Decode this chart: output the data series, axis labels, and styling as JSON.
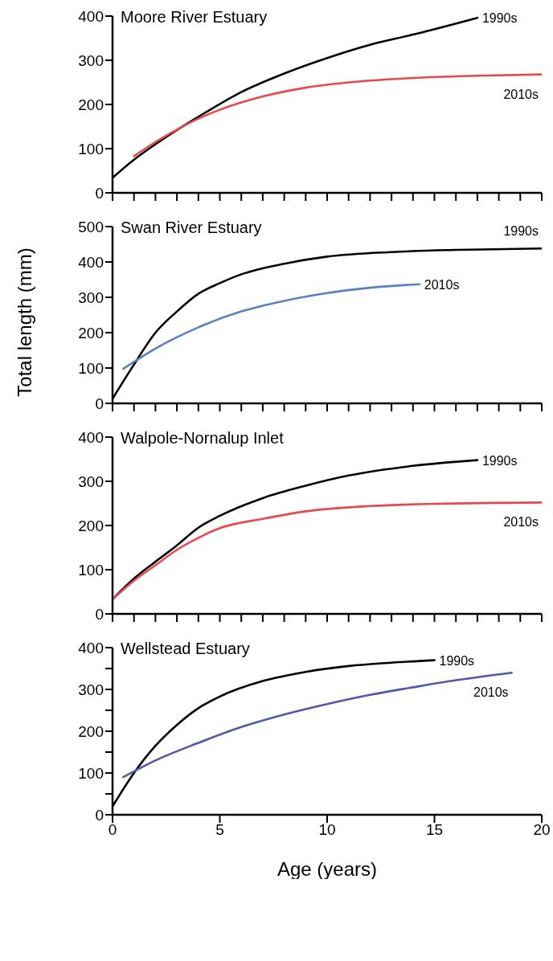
{
  "chart_data": [
    {
      "type": "line",
      "title": "Moore River Estuary",
      "xlim": [
        0,
        20
      ],
      "xticks": [
        {
          "value": 0,
          "label": null
        },
        {
          "value": 1,
          "label": null
        },
        {
          "value": 2,
          "label": null
        },
        {
          "value": 3,
          "label": null
        },
        {
          "value": 4,
          "label": null
        },
        {
          "value": 5,
          "label": null
        },
        {
          "value": 6,
          "label": null
        },
        {
          "value": 7,
          "label": null
        },
        {
          "value": 8,
          "label": null
        },
        {
          "value": 9,
          "label": null
        },
        {
          "value": 10,
          "label": null
        },
        {
          "value": 11,
          "label": null
        },
        {
          "value": 12,
          "label": null
        },
        {
          "value": 13,
          "label": null
        },
        {
          "value": 14,
          "label": null
        },
        {
          "value": 15,
          "label": null
        },
        {
          "value": 16,
          "label": null
        },
        {
          "value": 17,
          "label": null
        },
        {
          "value": 18,
          "label": null
        },
        {
          "value": 19,
          "label": null
        },
        {
          "value": 20,
          "label": null
        }
      ],
      "ylim": [
        0,
        400
      ],
      "yticks": [
        0,
        100,
        200,
        300,
        400
      ],
      "tick_labels": "y",
      "series": [
        {
          "name": "1990s",
          "color": "#000000",
          "x": [
            0,
            1,
            2,
            3,
            4,
            6,
            8,
            10,
            12,
            14,
            17
          ],
          "values": [
            34,
            75,
            110,
            142,
            172,
            228,
            270,
            305,
            335,
            358,
            396
          ]
        },
        {
          "name": "2010s",
          "color": "#e8474c",
          "x": [
            1,
            2,
            3,
            4,
            5,
            7,
            9,
            11,
            14,
            17,
            20
          ],
          "values": [
            83,
            115,
            143,
            168,
            188,
            218,
            238,
            250,
            260,
            265,
            268
          ]
        }
      ]
    },
    {
      "type": "line",
      "title": "Swan River Estuary",
      "ylabel": "Total length (mm)",
      "xlim": [
        0,
        20
      ],
      "xticks": [
        {
          "value": 0,
          "label": null
        },
        {
          "value": 1,
          "label": null
        },
        {
          "value": 2,
          "label": null
        },
        {
          "value": 3,
          "label": null
        },
        {
          "value": 4,
          "label": null
        },
        {
          "value": 5,
          "label": null
        },
        {
          "value": 6,
          "label": null
        },
        {
          "value": 7,
          "label": null
        },
        {
          "value": 8,
          "label": null
        },
        {
          "value": 9,
          "label": null
        },
        {
          "value": 10,
          "label": null
        },
        {
          "value": 11,
          "label": null
        },
        {
          "value": 12,
          "label": null
        },
        {
          "value": 13,
          "label": null
        },
        {
          "value": 14,
          "label": null
        },
        {
          "value": 15,
          "label": null
        },
        {
          "value": 16,
          "label": null
        },
        {
          "value": 17,
          "label": null
        },
        {
          "value": 18,
          "label": null
        },
        {
          "value": 19,
          "label": null
        },
        {
          "value": 20,
          "label": null
        }
      ],
      "ylim": [
        0,
        500
      ],
      "yticks": [
        0,
        100,
        200,
        300,
        400,
        500
      ],
      "tick_labels": "y",
      "series": [
        {
          "name": "1990s",
          "color": "#000000",
          "x": [
            0,
            1,
            2,
            3,
            4,
            5,
            6,
            8,
            10,
            13,
            16,
            20
          ],
          "values": [
            13,
            110,
            200,
            260,
            310,
            340,
            365,
            395,
            415,
            428,
            434,
            438
          ]
        },
        {
          "name": "2010s",
          "color": "#5b7fc4",
          "x": [
            0.5,
            2,
            4,
            6,
            8,
            10,
            12,
            14.3
          ],
          "values": [
            98,
            155,
            215,
            260,
            290,
            312,
            327,
            337
          ]
        }
      ]
    },
    {
      "type": "line",
      "title": "Walpole-Nornalup Inlet",
      "xlim": [
        0,
        20
      ],
      "xticks": [
        {
          "value": 0,
          "label": null
        },
        {
          "value": 1,
          "label": null
        },
        {
          "value": 2,
          "label": null
        },
        {
          "value": 3,
          "label": null
        },
        {
          "value": 4,
          "label": null
        },
        {
          "value": 5,
          "label": null
        },
        {
          "value": 6,
          "label": null
        },
        {
          "value": 7,
          "label": null
        },
        {
          "value": 8,
          "label": null
        },
        {
          "value": 9,
          "label": null
        },
        {
          "value": 10,
          "label": null
        },
        {
          "value": 11,
          "label": null
        },
        {
          "value": 12,
          "label": null
        },
        {
          "value": 13,
          "label": null
        },
        {
          "value": 14,
          "label": null
        },
        {
          "value": 15,
          "label": null
        },
        {
          "value": 16,
          "label": null
        },
        {
          "value": 17,
          "label": null
        },
        {
          "value": 18,
          "label": null
        },
        {
          "value": 19,
          "label": null
        },
        {
          "value": 20,
          "label": null
        }
      ],
      "ylim": [
        0,
        400
      ],
      "yticks": [
        0,
        100,
        200,
        300,
        400
      ],
      "tick_labels": "y",
      "series": [
        {
          "name": "1990s",
          "color": "#000000",
          "x": [
            0,
            1,
            2,
            3,
            4,
            5,
            7,
            9,
            11,
            14,
            17
          ],
          "values": [
            33,
            80,
            118,
            155,
            195,
            222,
            262,
            290,
            313,
            335,
            348
          ]
        },
        {
          "name": "2010s",
          "color": "#e8474c",
          "x": [
            0,
            1,
            2,
            3,
            4,
            5,
            7,
            9,
            12,
            15,
            20
          ],
          "values": [
            33,
            75,
            110,
            145,
            172,
            194,
            215,
            232,
            244,
            249,
            252
          ]
        }
      ]
    },
    {
      "type": "line",
      "title": "Wellstead Estuary",
      "xlabel": "Age (years)",
      "xlim": [
        0,
        20
      ],
      "xticks": [
        0,
        5,
        10,
        15,
        20
      ],
      "ylim": [
        0,
        400
      ],
      "yticks": [
        0,
        {
          "value": 50,
          "label": null
        },
        100,
        {
          "value": 150,
          "label": null
        },
        200,
        {
          "value": 250,
          "label": null
        },
        300,
        {
          "value": 350,
          "label": null
        },
        400
      ],
      "series": [
        {
          "name": "1990s",
          "color": "#000000",
          "x": [
            0,
            1,
            2,
            3,
            4,
            5,
            7,
            9,
            11,
            13,
            15
          ],
          "values": [
            20,
            100,
            165,
            215,
            255,
            283,
            320,
            342,
            356,
            364,
            370
          ]
        },
        {
          "name": "2010s",
          "color": "#5058a8",
          "x": [
            0.5,
            2,
            4,
            6,
            8,
            10,
            12,
            14,
            16,
            18.6
          ],
          "values": [
            90,
            130,
            172,
            210,
            240,
            265,
            287,
            305,
            322,
            340
          ]
        }
      ]
    }
  ]
}
